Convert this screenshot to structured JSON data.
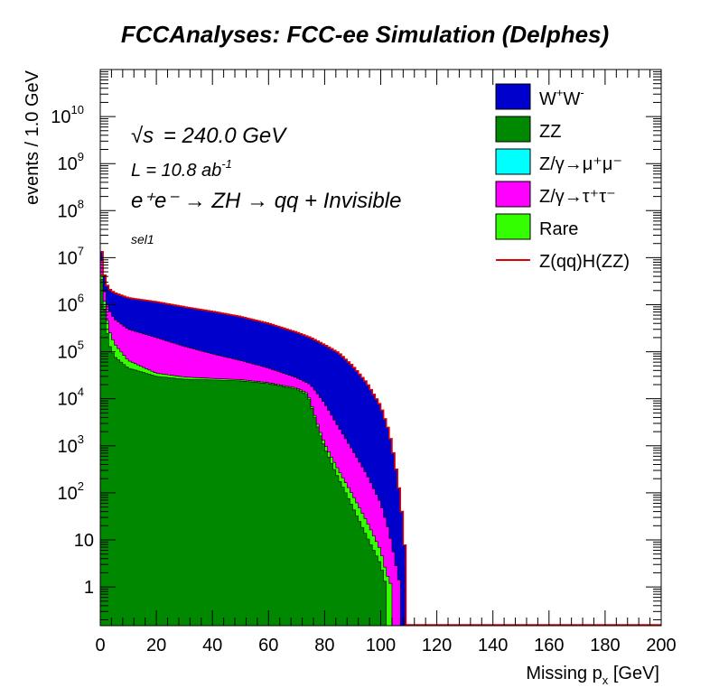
{
  "chart_data": {
    "type": "histogram",
    "title": "FCCAnalyses: FCC-ee Simulation (Delphes)",
    "xlabel_main": "Missing p",
    "xlabel_sub": "x",
    "xlabel_unit": " [GeV]",
    "ylabel": "events / 1.0 GeV",
    "xlim": [
      0,
      200
    ],
    "ylim": [
      0.15,
      100000000000
    ],
    "yscale": "log",
    "xticks": [
      "0",
      "20",
      "40",
      "60",
      "80",
      "100",
      "120",
      "140",
      "160",
      "180",
      "200"
    ],
    "yticks": [
      {
        "base": "1",
        "exp": ""
      },
      {
        "base": "10",
        "exp": ""
      },
      {
        "base": "10",
        "exp": "2"
      },
      {
        "base": "10",
        "exp": "3"
      },
      {
        "base": "10",
        "exp": "4"
      },
      {
        "base": "10",
        "exp": "5"
      },
      {
        "base": "10",
        "exp": "6"
      },
      {
        "base": "10",
        "exp": "7"
      },
      {
        "base": "10",
        "exp": "8"
      },
      {
        "base": "10",
        "exp": "9"
      },
      {
        "base": "10",
        "exp": "10"
      }
    ],
    "annotations": {
      "sqrt_s": "= 240.0 GeV",
      "sqrt_symbol": "√s",
      "lumi_main": "L = 10.8 ab",
      "lumi_exp": "-1",
      "process": "e⁺e⁻ → ZH → qq + Invisible",
      "selection": "sel1"
    },
    "legend_position": "top-right",
    "series": [
      {
        "key": "ww",
        "legend_main": "W",
        "legend_parts": [
          "W",
          "+",
          "W",
          "-"
        ],
        "color": "#0000cc",
        "kind": "fill",
        "x": [
          0,
          1,
          2,
          3,
          5,
          10,
          20,
          30,
          40,
          50,
          60,
          70,
          75,
          80,
          85,
          90,
          95,
          100,
          103,
          105,
          107,
          108,
          109,
          110
        ],
        "y": [
          30000000,
          6000000,
          3000000,
          2200000,
          1800000,
          1400000,
          1150000,
          900000,
          720000,
          560000,
          400000,
          260000,
          200000,
          140000,
          95000,
          50000,
          22000,
          7000,
          2000,
          500,
          80,
          20,
          3,
          0
        ]
      },
      {
        "key": "zz",
        "legend_main": "ZZ",
        "color": "#008800",
        "kind": "fill",
        "x": [
          0,
          1,
          2,
          3,
          5,
          10,
          20,
          30,
          40,
          50,
          60,
          70,
          74,
          76,
          78,
          80,
          85,
          90,
          95,
          100,
          102,
          104
        ],
        "y": [
          8000000,
          1500000,
          400000,
          150000,
          80000,
          45000,
          30000,
          26000,
          25000,
          24000,
          21000,
          16000,
          12000,
          5000,
          2000,
          900,
          200,
          50,
          12,
          3,
          1,
          0
        ]
      },
      {
        "key": "zmumu",
        "legend_main": "Z/γ→μ⁺μ⁻",
        "color": "#00ffff",
        "kind": "fill"
      },
      {
        "key": "ztautau",
        "legend_main": "Z/γ→τ⁺τ⁻",
        "color": "#ff00ff",
        "kind": "fill",
        "x": [
          0,
          1,
          2,
          3,
          5,
          10,
          20,
          30,
          40,
          50,
          60,
          70,
          75,
          80,
          85,
          90,
          95,
          100,
          103,
          105,
          107,
          108
        ],
        "y": [
          25000000,
          3000000,
          1200000,
          800000,
          500000,
          300000,
          200000,
          130000,
          90000,
          65000,
          45000,
          28000,
          20000,
          8000,
          2500,
          800,
          250,
          60,
          15,
          4,
          1,
          0
        ]
      },
      {
        "key": "rare",
        "legend_main": "Rare",
        "color": "#33ff00",
        "kind": "fill",
        "x": [
          0,
          1,
          2,
          3,
          5,
          10,
          20,
          30,
          40,
          50,
          60,
          70,
          74,
          76,
          78,
          80,
          85,
          90,
          95,
          100,
          102,
          104,
          106
        ],
        "y": [
          9000000,
          2000000,
          700000,
          300000,
          150000,
          65000,
          35000,
          29000,
          27000,
          25500,
          22000,
          17000,
          13000,
          5500,
          2300,
          1100,
          300,
          90,
          25,
          6,
          2,
          1,
          0
        ]
      },
      {
        "key": "signal",
        "legend_main": "Z(qq)H(ZZ)",
        "color": "#dd0000",
        "kind": "line"
      }
    ]
  }
}
